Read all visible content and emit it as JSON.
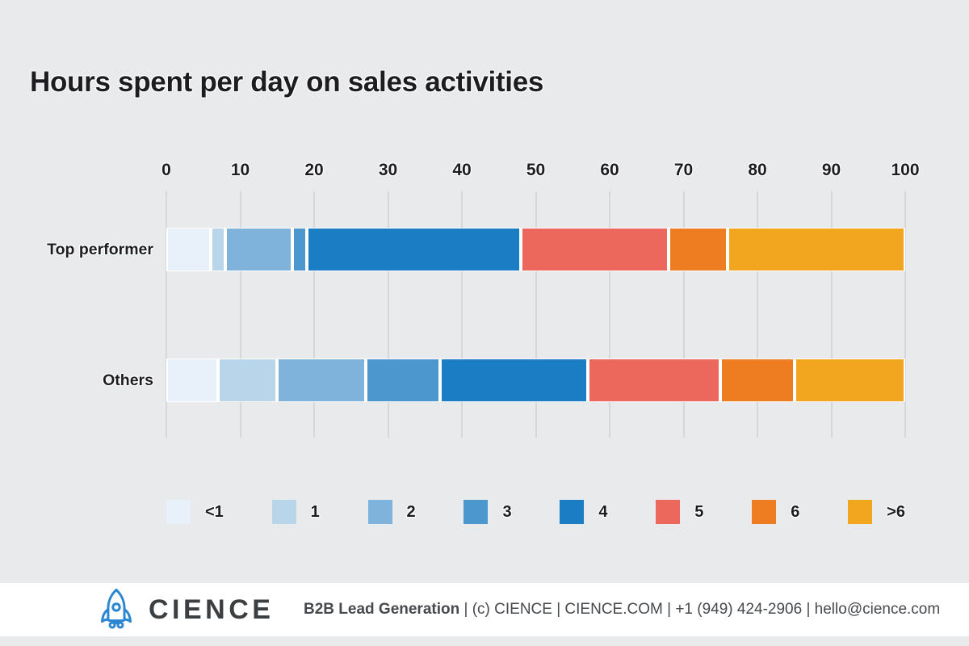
{
  "title": "Hours spent per day on sales activities",
  "chart_data": {
    "type": "bar",
    "stacked": true,
    "orientation": "horizontal",
    "title": "Hours spent per day on sales activities",
    "categories": [
      "Top performer",
      "Others"
    ],
    "series": [
      {
        "name": "<1",
        "color": "#e8f1fa",
        "values": [
          6,
          7
        ]
      },
      {
        "name": "1",
        "color": "#b8d5ea",
        "values": [
          2,
          8
        ]
      },
      {
        "name": "2",
        "color": "#7fb3db",
        "values": [
          9,
          12
        ]
      },
      {
        "name": "3",
        "color": "#4d97cf",
        "values": [
          2,
          10
        ]
      },
      {
        "name": "4",
        "color": "#1b7ec4",
        "values": [
          29,
          20
        ]
      },
      {
        "name": "5",
        "color": "#ec685c",
        "values": [
          20,
          18
        ]
      },
      {
        "name": "6",
        "color": "#ed7d20",
        "values": [
          8,
          10
        ]
      },
      {
        "name": ">6",
        "color": "#f2a51e",
        "values": [
          24,
          15
        ]
      }
    ],
    "x_ticks": [
      0,
      10,
      20,
      30,
      40,
      50,
      60,
      70,
      80,
      90,
      100
    ],
    "xlim": [
      0,
      100
    ],
    "xlabel": "",
    "ylabel": "",
    "grid": true,
    "legend_position": "bottom"
  },
  "footer": {
    "brand": "CIENCE",
    "logo": "rocket-icon",
    "tagline_bold": "B2B Lead Generation",
    "tagline_rest": " | (c) CIENCE | CIENCE.COM | +1 (949) 424-2906 | hello@cience.com"
  },
  "colors": {
    "background": "#e9eaeb",
    "gridline": "#d5d7d9",
    "title_text": "#1c1c21",
    "footer_background": "#ffffff",
    "footer_text": "#46494d",
    "logo_blue": "#2b86d2"
  }
}
